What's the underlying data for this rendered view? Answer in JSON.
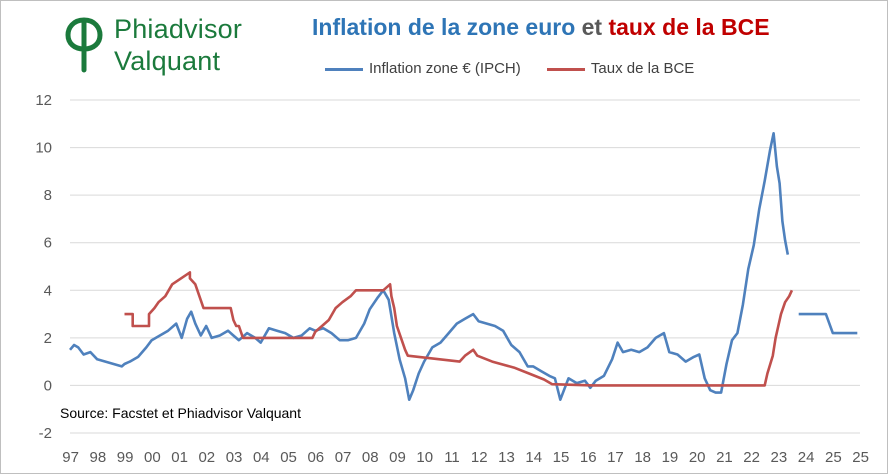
{
  "logo": {
    "line1": "Phiadvisor",
    "line2": "Valquant",
    "color": "#1b7a3c"
  },
  "title": {
    "part1": "Inflation de la zone euro",
    "part2": "et",
    "part3": "taux de la BCE"
  },
  "source": "Source: Facstet et Phiadvisor Valquant",
  "chart_data": {
    "type": "line",
    "title": "Inflation de la zone euro et taux de la BCE",
    "xlabel": "",
    "ylabel": "",
    "xlim": [
      1997,
      2026
    ],
    "ylim": [
      -2,
      12
    ],
    "yticks": [
      -2,
      0,
      2,
      4,
      6,
      8,
      10,
      12
    ],
    "xtick_labels": [
      "97",
      "98",
      "99",
      "00",
      "01",
      "02",
      "03",
      "04",
      "05",
      "06",
      "07",
      "08",
      "09",
      "10",
      "11",
      "12",
      "13",
      "14",
      "15",
      "16",
      "17",
      "18",
      "19",
      "20",
      "21",
      "22",
      "23",
      "24",
      "25",
      "25"
    ],
    "grid": true,
    "legend_position": "top",
    "series": [
      {
        "name": "Inflation zone  € (IPCH)",
        "color": "#4f81bd",
        "x": [
          1997.0,
          1997.15,
          1997.3,
          1997.5,
          1997.75,
          1998.0,
          1998.3,
          1998.6,
          1998.9,
          1999.0,
          1999.2,
          1999.5,
          1999.8,
          2000.0,
          2000.3,
          2000.6,
          2000.9,
          2001.1,
          2001.3,
          2001.45,
          2001.6,
          2001.8,
          2002.0,
          2002.2,
          2002.5,
          2002.8,
          2003.0,
          2003.2,
          2003.5,
          2003.8,
          2004.0,
          2004.3,
          2004.6,
          2004.9,
          2005.2,
          2005.5,
          2005.8,
          2006.0,
          2006.3,
          2006.6,
          2006.9,
          2007.2,
          2007.5,
          2007.8,
          2008.0,
          2008.3,
          2008.5,
          2008.7,
          2008.9,
          2009.1,
          2009.3,
          2009.45,
          2009.6,
          2009.8,
          2010.0,
          2010.3,
          2010.6,
          2010.9,
          2011.2,
          2011.5,
          2011.8,
          2012.0,
          2012.3,
          2012.6,
          2012.9,
          2013.2,
          2013.5,
          2013.8,
          2014.0,
          2014.3,
          2014.6,
          2014.8,
          2015.0,
          2015.3,
          2015.6,
          2015.9,
          2016.1,
          2016.3,
          2016.6,
          2016.9,
          2017.1,
          2017.3,
          2017.6,
          2017.9,
          2018.2,
          2018.5,
          2018.8,
          2019.0,
          2019.3,
          2019.6,
          2019.9,
          2020.1,
          2020.3,
          2020.5,
          2020.7,
          2020.9,
          2021.1,
          2021.3,
          2021.5,
          2021.7,
          2021.9,
          2022.1,
          2022.3,
          2022.5,
          2022.7,
          2022.83,
          2022.95,
          2023.05,
          2023.15,
          2023.25,
          2023.35
        ],
        "values": [
          1.5,
          1.7,
          1.6,
          1.3,
          1.4,
          1.1,
          1.0,
          0.9,
          0.8,
          0.9,
          1.0,
          1.2,
          1.6,
          1.9,
          2.1,
          2.3,
          2.6,
          2.0,
          2.8,
          3.1,
          2.6,
          2.1,
          2.5,
          2.0,
          2.1,
          2.3,
          2.1,
          1.9,
          2.2,
          2.0,
          1.8,
          2.4,
          2.3,
          2.2,
          2.0,
          2.1,
          2.4,
          2.3,
          2.4,
          2.2,
          1.9,
          1.9,
          2.0,
          2.6,
          3.2,
          3.7,
          4.0,
          3.6,
          2.2,
          1.1,
          0.3,
          -0.6,
          -0.2,
          0.5,
          1.0,
          1.6,
          1.8,
          2.2,
          2.6,
          2.8,
          3.0,
          2.7,
          2.6,
          2.5,
          2.3,
          1.7,
          1.4,
          0.8,
          0.8,
          0.6,
          0.4,
          0.3,
          -0.6,
          0.3,
          0.1,
          0.2,
          -0.1,
          0.2,
          0.4,
          1.1,
          1.8,
          1.4,
          1.5,
          1.4,
          1.6,
          2.0,
          2.2,
          1.4,
          1.3,
          1.0,
          1.2,
          1.3,
          0.3,
          -0.2,
          -0.3,
          -0.3,
          0.9,
          1.9,
          2.2,
          3.4,
          4.9,
          5.9,
          7.4,
          8.6,
          9.9,
          10.6,
          9.2,
          8.5,
          6.9,
          6.1,
          5.5
        ]
      },
      {
        "name": "Taux de la BCE",
        "color": "#c0504d",
        "x": [
          1999.0,
          1999.3,
          1999.3,
          1999.9,
          1999.9,
          2000.1,
          2000.25,
          2000.5,
          2000.75,
          2001.4,
          2001.4,
          2001.6,
          2001.75,
          2001.9,
          2002.0,
          2002.9,
          2003.0,
          2003.1,
          2003.2,
          2003.35,
          2003.45,
          2005.9,
          2006.0,
          2006.25,
          2006.5,
          2006.75,
          2007.0,
          2007.3,
          2007.5,
          2008.5,
          2008.75,
          2008.8,
          2008.9,
          2009.0,
          2009.15,
          2009.3,
          2009.4,
          2011.3,
          2011.5,
          2011.8,
          2011.95,
          2012.5,
          2013.3,
          2013.85,
          2014.4,
          2014.7,
          2016.2,
          2022.5,
          2022.6,
          2022.8,
          2022.9,
          2023.0,
          2023.1,
          2023.25,
          2023.4,
          2023.5
        ],
        "values": [
          3.0,
          3.0,
          2.5,
          2.5,
          3.0,
          3.25,
          3.5,
          3.75,
          4.25,
          4.75,
          4.5,
          4.25,
          3.75,
          3.25,
          3.25,
          3.25,
          2.75,
          2.5,
          2.5,
          2.0,
          2.0,
          2.0,
          2.25,
          2.5,
          2.75,
          3.25,
          3.5,
          3.75,
          4.0,
          4.0,
          4.25,
          3.75,
          3.25,
          2.5,
          2.0,
          1.5,
          1.25,
          1.0,
          1.25,
          1.5,
          1.25,
          1.0,
          0.75,
          0.5,
          0.25,
          0.05,
          0.0,
          0.0,
          0.5,
          1.25,
          2.0,
          2.5,
          3.0,
          3.5,
          3.75,
          4.0
        ]
      },
      {
        "name": "",
        "color": "#4f81bd",
        "x": [
          2023.75,
          2024.25,
          2024.75,
          2025.0,
          2025.9
        ],
        "values": [
          3.0,
          3.0,
          3.0,
          2.2,
          2.2
        ]
      }
    ]
  }
}
